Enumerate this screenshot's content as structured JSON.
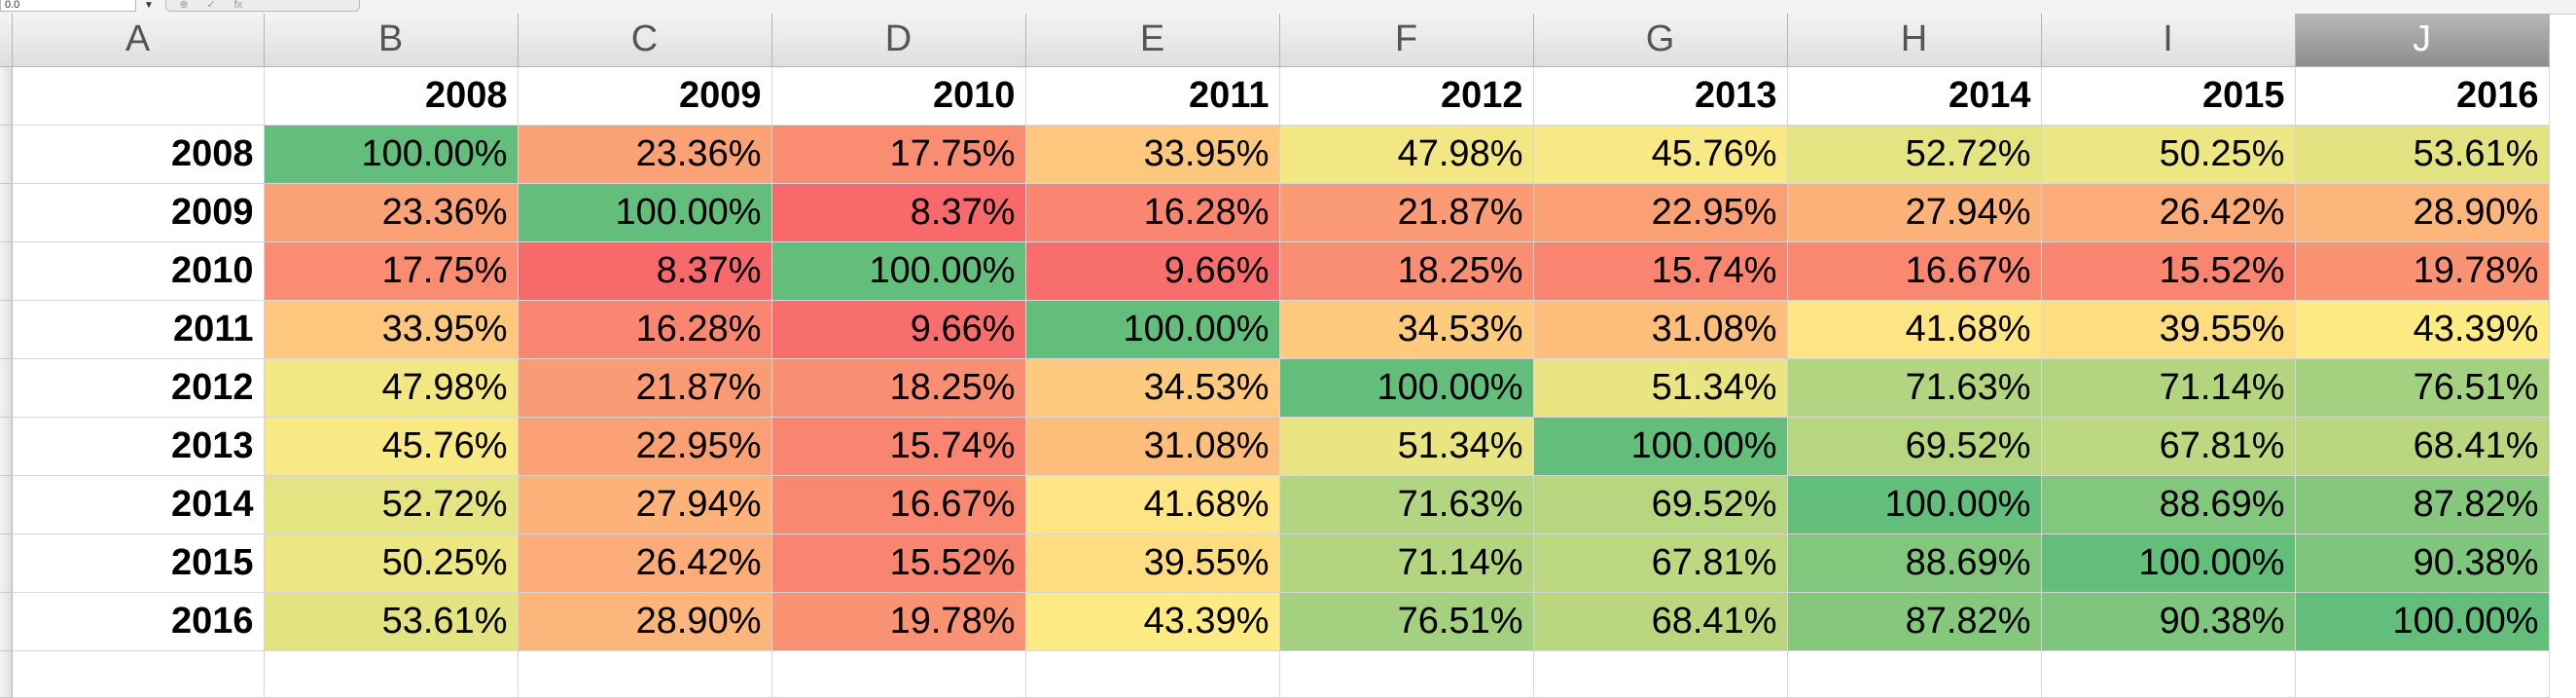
{
  "toolbar": {
    "name_box": "0.0",
    "dropdown": "▼",
    "fx_buttons": [
      "⊗",
      "✓",
      "fx"
    ]
  },
  "columns": [
    "A",
    "B",
    "C",
    "D",
    "E",
    "F",
    "G",
    "H",
    "I",
    "J"
  ],
  "selected_column": "J",
  "header_years": [
    "2008",
    "2009",
    "2010",
    "2011",
    "2012",
    "2013",
    "2014",
    "2015",
    "2016"
  ],
  "row_years": [
    "2008",
    "2009",
    "2010",
    "2011",
    "2012",
    "2013",
    "2014",
    "2015",
    "2016"
  ],
  "values": [
    [
      "100.00%",
      "23.36%",
      "17.75%",
      "33.95%",
      "47.98%",
      "45.76%",
      "52.72%",
      "50.25%",
      "53.61%"
    ],
    [
      "23.36%",
      "100.00%",
      "8.37%",
      "16.28%",
      "21.87%",
      "22.95%",
      "27.94%",
      "26.42%",
      "28.90%"
    ],
    [
      "17.75%",
      "8.37%",
      "100.00%",
      "9.66%",
      "18.25%",
      "15.74%",
      "16.67%",
      "15.52%",
      "19.78%"
    ],
    [
      "33.95%",
      "16.28%",
      "9.66%",
      "100.00%",
      "34.53%",
      "31.08%",
      "41.68%",
      "39.55%",
      "43.39%"
    ],
    [
      "47.98%",
      "21.87%",
      "18.25%",
      "34.53%",
      "100.00%",
      "51.34%",
      "71.63%",
      "71.14%",
      "76.51%"
    ],
    [
      "45.76%",
      "22.95%",
      "15.74%",
      "31.08%",
      "51.34%",
      "100.00%",
      "69.52%",
      "67.81%",
      "68.41%"
    ],
    [
      "52.72%",
      "27.94%",
      "16.67%",
      "41.68%",
      "71.63%",
      "69.52%",
      "100.00%",
      "88.69%",
      "87.82%"
    ],
    [
      "50.25%",
      "26.42%",
      "15.52%",
      "39.55%",
      "71.14%",
      "67.81%",
      "88.69%",
      "100.00%",
      "90.38%"
    ],
    [
      "53.61%",
      "28.90%",
      "19.78%",
      "43.39%",
      "76.51%",
      "68.41%",
      "87.82%",
      "90.38%",
      "100.00%"
    ]
  ],
  "color_scale": {
    "min_color": "#f8696b",
    "mid_color": "#ffeb84",
    "max_color": "#63be7b",
    "mid_percentile": 50
  }
}
